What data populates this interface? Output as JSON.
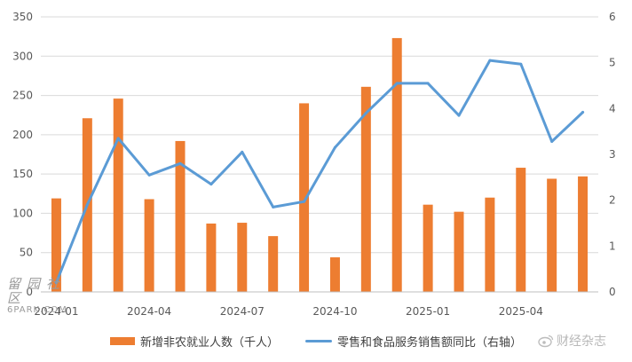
{
  "chart_data": {
    "type": "bar+line",
    "categories": [
      "2024-01",
      "2024-02",
      "2024-03",
      "2024-04",
      "2024-05",
      "2024-06",
      "2024-07",
      "2024-08",
      "2024-09",
      "2024-10",
      "2024-11",
      "2024-12",
      "2025-01",
      "2025-02",
      "2025-03",
      "2025-04",
      "2025-05",
      "2025-06"
    ],
    "x_tick_labels": [
      "2024-01",
      "2024-04",
      "2024-07",
      "2024-10",
      "2025-01",
      "2025-04"
    ],
    "series": [
      {
        "name": "新增非农就业人数（千人）",
        "type": "bar",
        "axis": "left",
        "color": "#ed7d31",
        "values": [
          119,
          221,
          246,
          118,
          192,
          87,
          88,
          71,
          240,
          44,
          261,
          323,
          111,
          102,
          120,
          158,
          144,
          147
        ]
      },
      {
        "name": "零售和食品服务销售额同比（右轴）",
        "type": "line",
        "axis": "right",
        "color": "#5b9bd5",
        "values": [
          0.2,
          1.9,
          3.35,
          2.55,
          2.8,
          2.35,
          3.05,
          1.85,
          1.97,
          3.15,
          3.9,
          4.55,
          4.55,
          3.85,
          5.05,
          4.97,
          3.28,
          3.92
        ]
      }
    ],
    "y_left": {
      "range": [
        0,
        350
      ],
      "ticks": [
        "0",
        "50",
        "100",
        "150",
        "200",
        "250",
        "300",
        "350"
      ]
    },
    "y_right": {
      "range": [
        0,
        6
      ],
      "ticks": [
        "0",
        "1",
        "2",
        "3",
        "4",
        "5",
        "6"
      ]
    },
    "grid": "horizontal",
    "legend_position": "bottom"
  },
  "watermarks": {
    "left_cn": "留园社区",
    "left_en": "6PARK.COM",
    "right": "财经杂志"
  }
}
